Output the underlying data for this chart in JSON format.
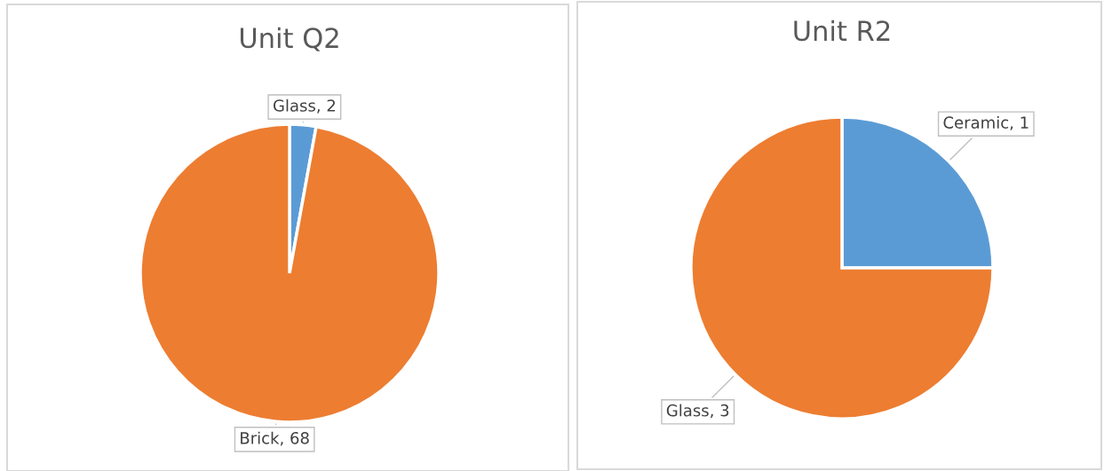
{
  "chart_data": [
    {
      "type": "pie",
      "title": "Unit Q2",
      "categories": [
        "Glass",
        "Brick"
      ],
      "values": [
        2,
        68
      ],
      "colors": [
        "#5b9bd5",
        "#ed7d31"
      ],
      "value_labels": [
        ", 2",
        ", 68"
      ],
      "legend": false
    },
    {
      "type": "pie",
      "title": "Unit R2",
      "categories": [
        "Ceramic",
        "Glass"
      ],
      "values": [
        1,
        3
      ],
      "colors": [
        "#5b9bd5",
        "#ed7d31"
      ],
      "value_labels": [
        ", 1",
        ", 3"
      ],
      "legend": false
    }
  ]
}
